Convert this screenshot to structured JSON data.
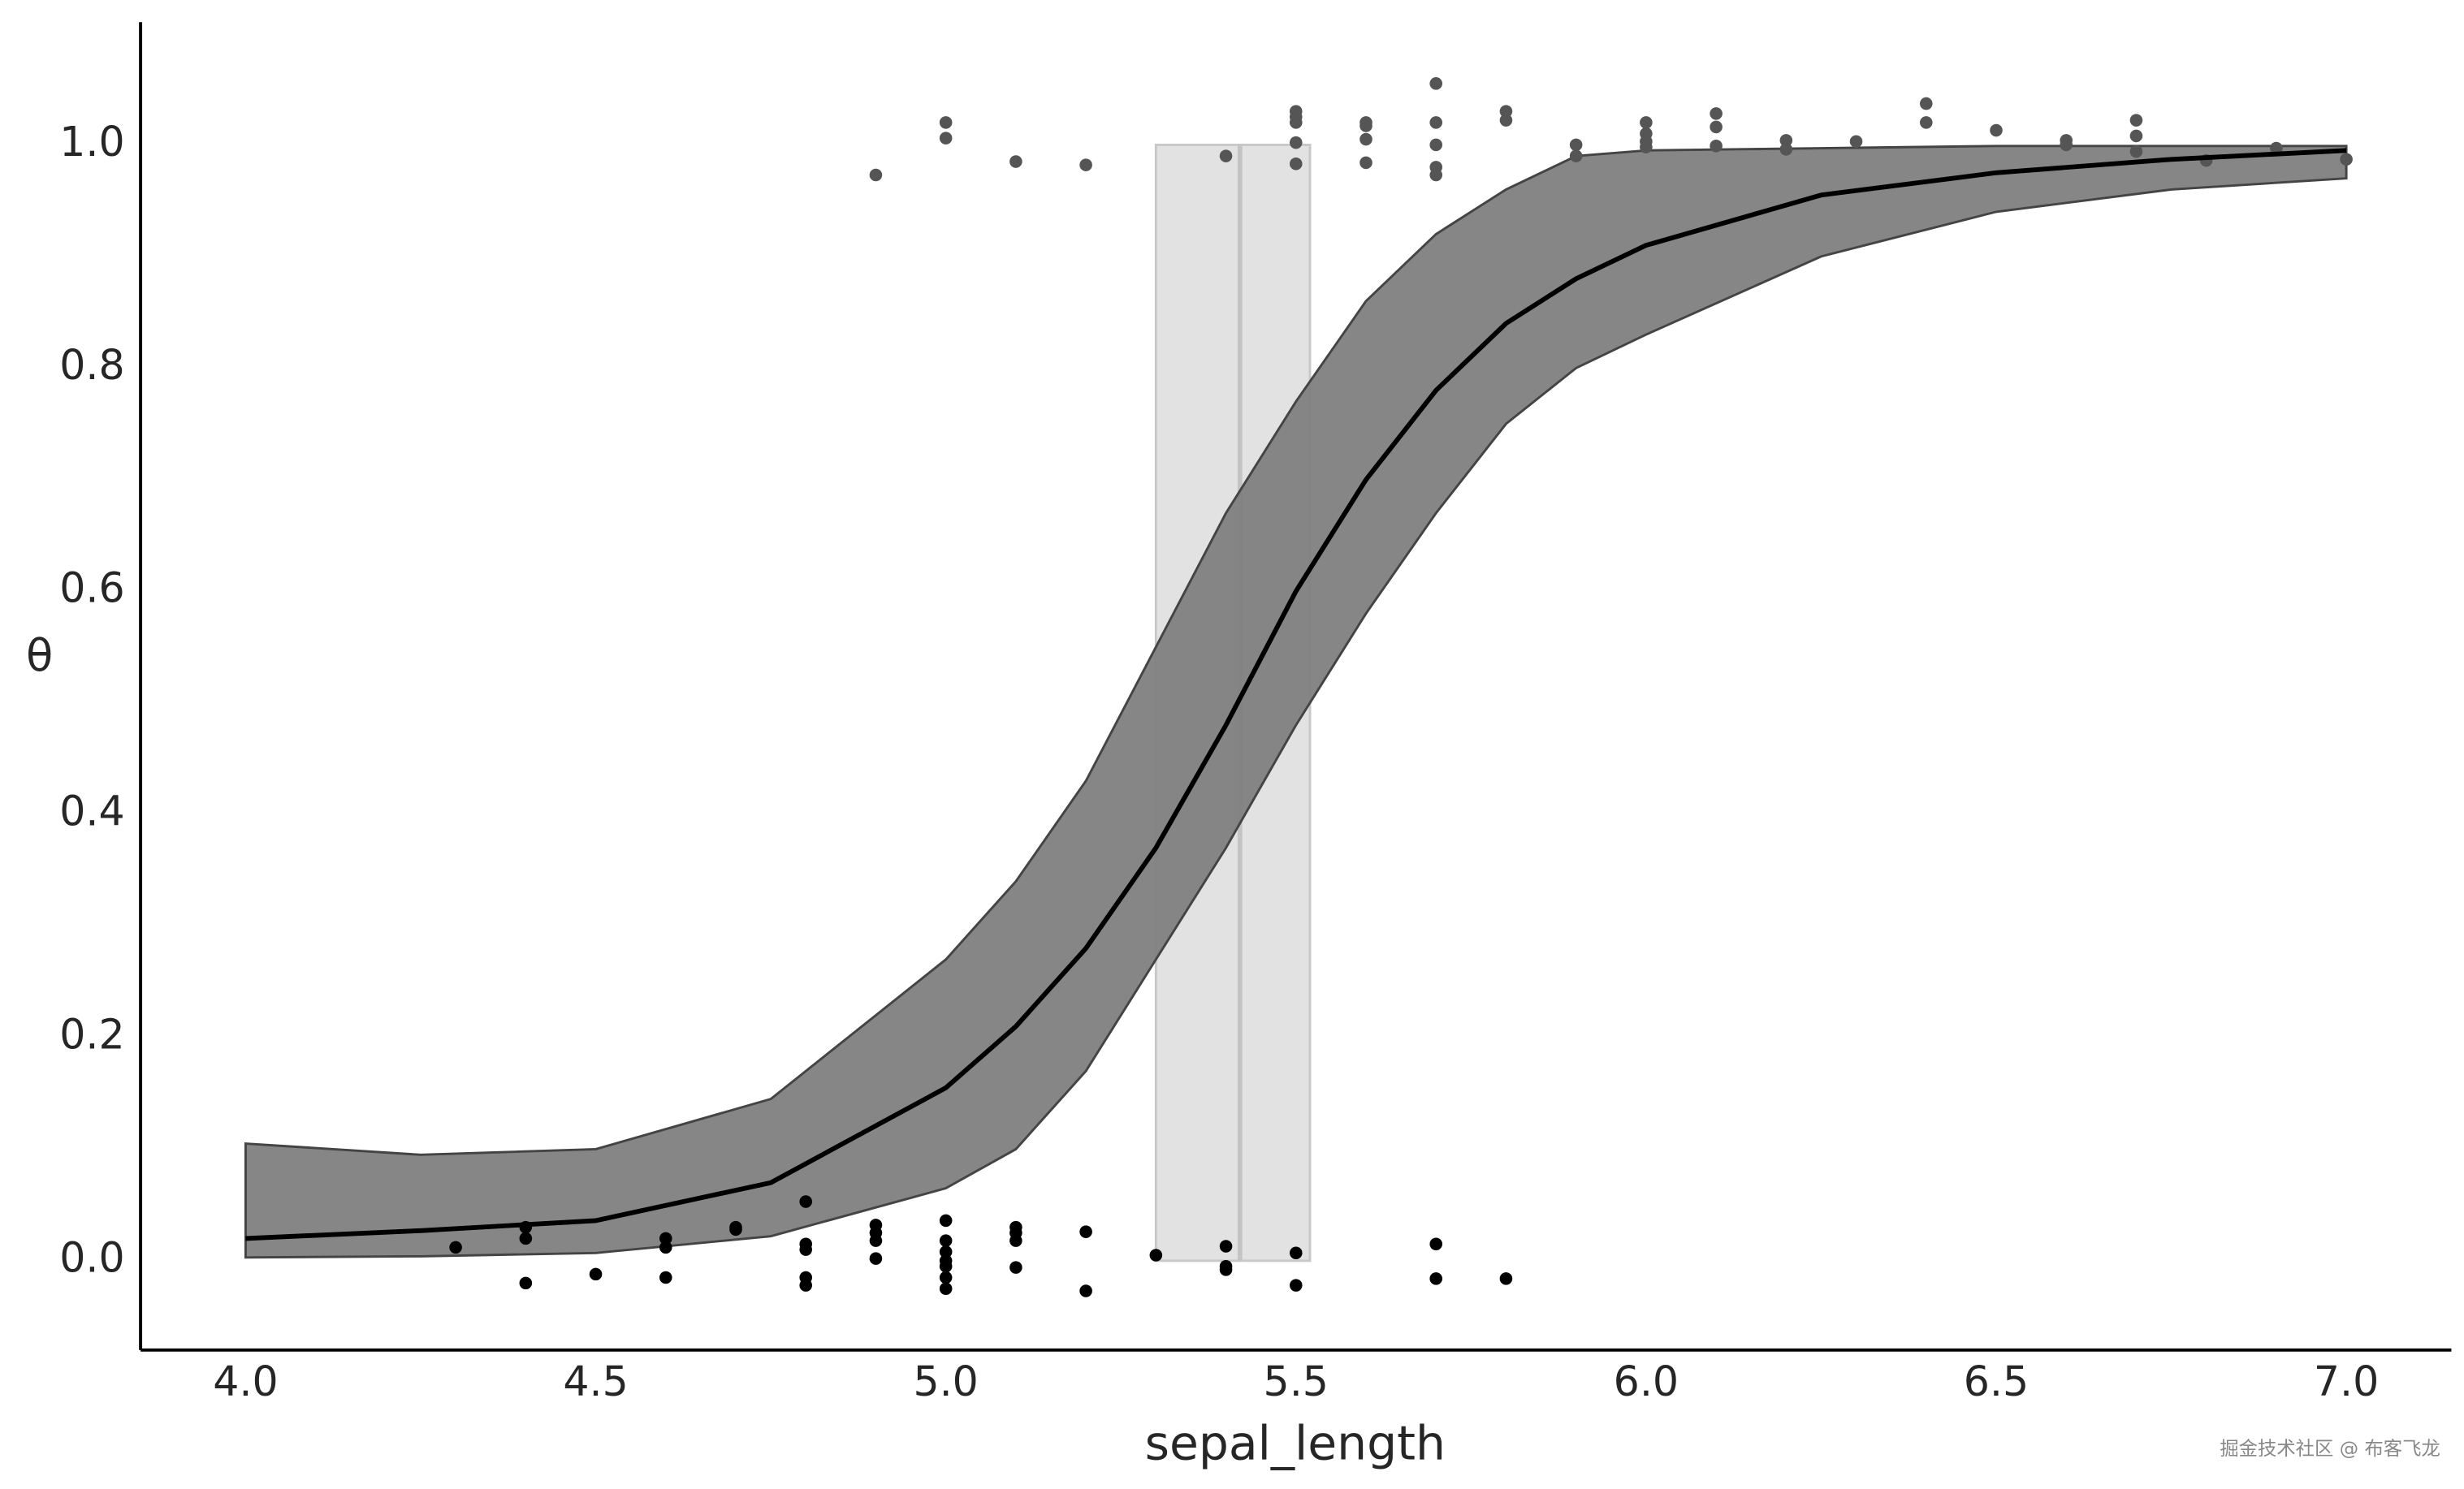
{
  "chart_data": {
    "type": "line",
    "x_label": "sepal_length",
    "y_label": "θ",
    "watermark": "掘金技术社区 @ 布客飞龙",
    "xlim": [
      3.85,
      7.15
    ],
    "ylim": [
      -0.08,
      1.11
    ],
    "xticks": [
      {
        "value": 4,
        "label": "4.0"
      },
      {
        "value": 4.5,
        "label": "4.5"
      },
      {
        "value": 5,
        "label": "5.0"
      },
      {
        "value": 5.5,
        "label": "5.5"
      },
      {
        "value": 6,
        "label": "6.0"
      },
      {
        "value": 6.5,
        "label": "6.5"
      },
      {
        "value": 7,
        "label": "7.0"
      }
    ],
    "yticks": [
      {
        "value": 0,
        "label": "0.0"
      },
      0.2,
      0.4,
      0.6,
      0.8,
      {
        "value": 1,
        "label": "1.0"
      }
    ],
    "x": [
      4.0,
      4.25,
      4.5,
      4.75,
      5.0,
      5.1,
      5.2,
      5.3,
      5.4,
      5.5,
      5.6,
      5.7,
      5.8,
      5.9,
      6.0,
      6.25,
      6.5,
      6.75,
      7.0
    ],
    "series": [
      {
        "color": "#000000",
        "values": [
          0.02,
          0.027,
          0.036,
          0.07,
          0.155,
          0.21,
          0.28,
          0.37,
          0.48,
          0.6,
          0.7,
          0.78,
          0.84,
          0.88,
          0.91,
          0.955,
          0.975,
          0.987,
          0.995
        ]
      }
    ],
    "band": {
      "color": "#808080",
      "lower": [
        0.003,
        0.004,
        0.007,
        0.022,
        0.065,
        0.1,
        0.17,
        0.27,
        0.37,
        0.48,
        0.58,
        0.67,
        0.75,
        0.8,
        0.83,
        0.9,
        0.94,
        0.96,
        0.97
      ],
      "upper": [
        0.105,
        0.095,
        0.1,
        0.145,
        0.27,
        0.34,
        0.43,
        0.55,
        0.67,
        0.77,
        0.86,
        0.92,
        0.96,
        0.99,
        0.995,
        0.997,
        0.999,
        0.999,
        0.999
      ]
    },
    "boundary": {
      "value": 5.42,
      "lower": 5.3,
      "upper": 5.52,
      "extent": [
        0,
        1
      ],
      "color": "#e0e0e0"
    },
    "points": [
      {
        "color": "#000000",
        "x": [
          4.3,
          4.4,
          4.4,
          4.4,
          4.5,
          4.6,
          4.6,
          4.6,
          4.7,
          4.7,
          4.8,
          4.8,
          4.8,
          4.8,
          4.8,
          4.9,
          4.9,
          4.9,
          4.9,
          5.0,
          5.0,
          5.0,
          5.0,
          5.0,
          5.0,
          5.0,
          5.1,
          5.1,
          5.1,
          5.1,
          5.2,
          5.2,
          5.3,
          5.4,
          5.4,
          5.4,
          5.5,
          5.5,
          5.7,
          5.7,
          5.8
        ],
        "values": [
          0.012,
          0.03,
          0.02,
          -0.02,
          -0.012,
          0.02,
          0.012,
          -0.015,
          0.03,
          0.028,
          0.053,
          0.015,
          0.01,
          -0.015,
          -0.022,
          0.032,
          0.025,
          0.018,
          0.002,
          0.036,
          0.018,
          0.008,
          0.0,
          -0.005,
          -0.015,
          -0.025,
          0.03,
          0.025,
          0.018,
          -0.006,
          0.026,
          -0.027,
          0.005,
          0.013,
          -0.005,
          -0.008,
          0.007,
          -0.022,
          0.015,
          -0.016,
          -0.016
        ]
      },
      {
        "color": "#555555",
        "x": [
          4.9,
          5.0,
          5.0,
          5.1,
          5.2,
          5.4,
          5.5,
          5.5,
          5.5,
          5.5,
          5.5,
          5.6,
          5.6,
          5.6,
          5.6,
          5.7,
          5.7,
          5.7,
          5.7,
          5.7,
          5.8,
          5.8,
          5.9,
          5.9,
          6.0,
          6.0,
          6.0,
          6.0,
          6.1,
          6.1,
          6.1,
          6.2,
          6.2,
          6.3,
          6.4,
          6.4,
          6.5,
          6.6,
          6.6,
          6.7,
          6.7,
          6.7,
          6.8,
          6.9,
          7.0
        ],
        "values": [
          0.973,
          1.02,
          1.006,
          0.985,
          0.982,
          0.99,
          1.03,
          1.025,
          1.02,
          1.002,
          0.983,
          1.02,
          1.017,
          1.005,
          0.984,
          1.055,
          1.02,
          1.0,
          0.98,
          0.973,
          1.03,
          1.022,
          1.0,
          0.99,
          1.02,
          1.01,
          1.003,
          0.998,
          1.028,
          1.016,
          0.999,
          1.004,
          0.996,
          1.003,
          1.037,
          1.02,
          1.013,
          1.004,
          1.0,
          1.022,
          1.008,
          0.994,
          0.986,
          0.997,
          0.987
        ]
      }
    ]
  }
}
